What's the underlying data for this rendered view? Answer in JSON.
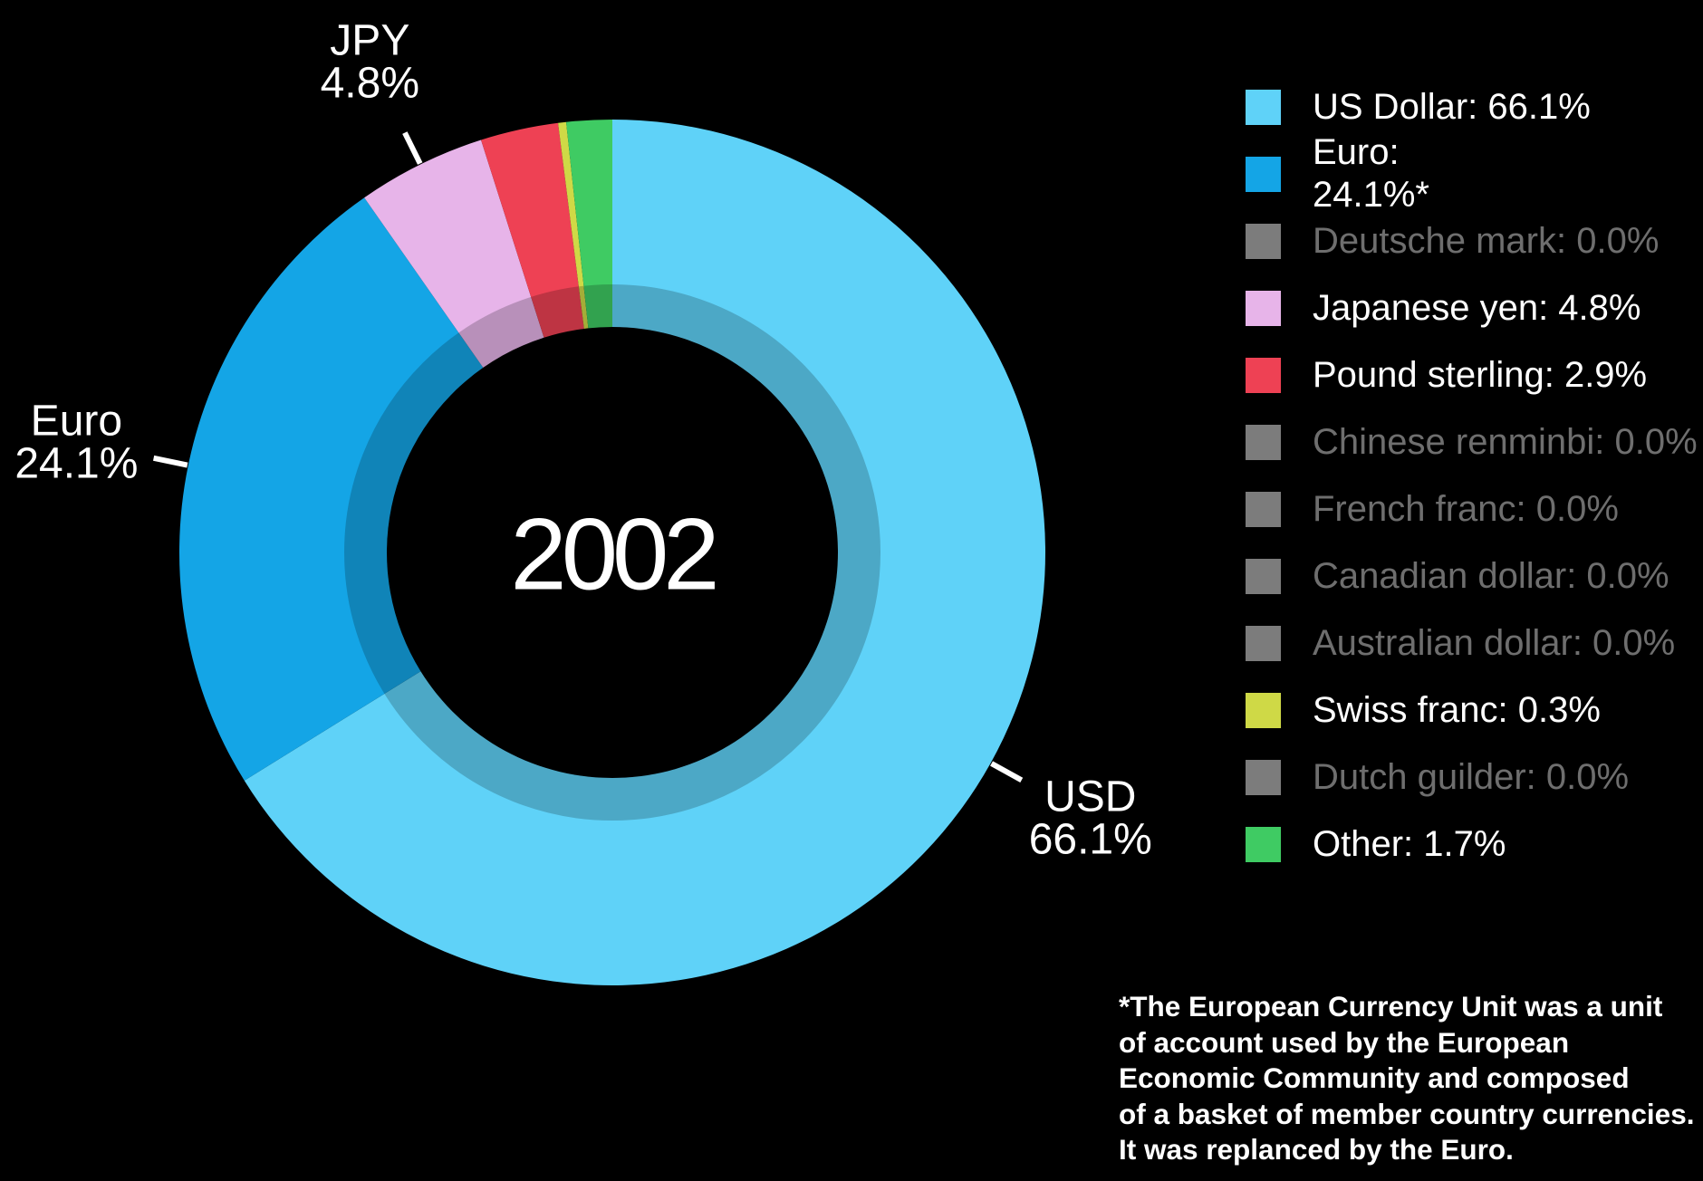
{
  "colors": {
    "background": "#000000",
    "text": "#ffffff",
    "inactive_text": "#6e6e6e",
    "leader_line": "#ffffff",
    "inner_ring_shade": "rgba(0,0,0,0.2)"
  },
  "chart_data": {
    "type": "pie",
    "subtype": "donut",
    "center_label": "2002",
    "unit": "%",
    "slices": [
      {
        "label": "US Dollar",
        "value": 66.1,
        "color": "#5fd2f8"
      },
      {
        "label": "Euro",
        "value": 24.1,
        "color": "#14a5e6"
      },
      {
        "label": "Japanese yen",
        "value": 4.8,
        "color": "#e7b4e9"
      },
      {
        "label": "Pound sterling",
        "value": 2.9,
        "color": "#ee4154"
      },
      {
        "label": "Swiss franc",
        "value": 0.3,
        "color": "#cfd946"
      },
      {
        "label": "Other",
        "value": 1.7,
        "color": "#3fcb63"
      }
    ],
    "callouts": [
      {
        "slice": "US Dollar",
        "lines": [
          "USD",
          "66.1%"
        ]
      },
      {
        "slice": "Euro",
        "lines": [
          "Euro",
          "24.1%"
        ]
      },
      {
        "slice": "Japanese yen",
        "lines": [
          "JPY",
          "4.8%"
        ]
      }
    ]
  },
  "legend": {
    "items": [
      {
        "label": "US Dollar",
        "value": "66.1%",
        "color": "#5fd2f8",
        "active": true,
        "two_line": false
      },
      {
        "label": "Euro",
        "value": "24.1%*",
        "color": "#14a5e6",
        "active": true,
        "two_line": true
      },
      {
        "label": "Deutsche mark",
        "value": "0.0%",
        "color": "#7c7c7c",
        "active": false,
        "two_line": false
      },
      {
        "label": "Japanese yen",
        "value": "4.8%",
        "color": "#e7b4e9",
        "active": true,
        "two_line": false
      },
      {
        "label": "Pound sterling",
        "value": "2.9%",
        "color": "#ee4154",
        "active": true,
        "two_line": false
      },
      {
        "label": "Chinese renminbi",
        "value": "0.0%",
        "color": "#7c7c7c",
        "active": false,
        "two_line": false
      },
      {
        "label": "French franc",
        "value": "0.0%",
        "color": "#7c7c7c",
        "active": false,
        "two_line": false
      },
      {
        "label": "Canadian dollar",
        "value": "0.0%",
        "color": "#7c7c7c",
        "active": false,
        "two_line": false
      },
      {
        "label": "Australian dollar",
        "value": "0.0%",
        "color": "#7c7c7c",
        "active": false,
        "two_line": false
      },
      {
        "label": "Swiss franc",
        "value": "0.3%",
        "color": "#cfd946",
        "active": true,
        "two_line": false
      },
      {
        "label": "Dutch guilder",
        "value": "0.0%",
        "color": "#7c7c7c",
        "active": false,
        "two_line": false
      },
      {
        "label": "Other",
        "value": "1.7%",
        "color": "#3fcb63",
        "active": true,
        "two_line": false
      }
    ]
  },
  "footnote": {
    "lines": [
      "*The European Currency Unit was a unit",
      "of account used by the European",
      "Economic Community and composed",
      "of a basket of member country currencies.",
      "It was replanced by the Euro."
    ]
  }
}
